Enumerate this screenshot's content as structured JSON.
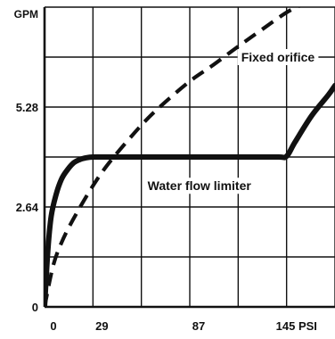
{
  "colors": {
    "background": "#ffffff",
    "ink": "#111111",
    "grid": "#111111"
  },
  "chart_data": {
    "type": "line",
    "title": "",
    "xlabel": "",
    "ylabel": "",
    "x_unit": "PSI",
    "y_unit": "GPM",
    "xlim": [
      0,
      174
    ],
    "ylim": [
      0,
      7.92
    ],
    "x_ticks": [
      0,
      29,
      87,
      145
    ],
    "x_tick_labels": [
      "0",
      "29",
      "87",
      "145 PSI"
    ],
    "y_ticks": [
      0,
      2.64,
      5.28,
      7.92
    ],
    "y_tick_labels": [
      "0",
      "2.64",
      "5.28",
      "GPM"
    ],
    "x_gridlines": [
      0,
      29,
      58,
      87,
      116,
      145,
      174
    ],
    "y_gridlines": [
      0,
      1.32,
      2.64,
      3.96,
      5.28,
      6.6,
      7.92
    ],
    "grid": true,
    "legend": "none",
    "annotations": [
      {
        "text": "Fixed orifice",
        "series": "fixed-orifice"
      },
      {
        "text": "Water flow limiter",
        "series": "water-flow-limiter"
      }
    ],
    "series": [
      {
        "key": "water-flow-limiter",
        "style": "solid",
        "x": [
          0,
          2,
          4,
          7,
          10,
          13,
          17,
          21,
          25,
          29,
          40,
          60,
          80,
          100,
          120,
          140,
          145,
          150,
          160,
          170,
          174
        ],
        "y": [
          0,
          1.5,
          2.4,
          2.98,
          3.36,
          3.58,
          3.79,
          3.89,
          3.94,
          3.96,
          3.96,
          3.96,
          3.96,
          3.96,
          3.96,
          3.96,
          3.98,
          4.35,
          5.05,
          5.6,
          5.85
        ]
      },
      {
        "key": "fixed-orifice",
        "style": "dashed",
        "x": [
          0,
          5,
          10,
          17,
          29,
          40,
          58,
          70,
          87,
          100,
          116,
          130,
          145,
          155
        ],
        "y": [
          0,
          1.06,
          1.68,
          2.3,
          3.2,
          3.88,
          4.8,
          5.32,
          5.96,
          6.36,
          6.88,
          7.32,
          7.78,
          8.0
        ]
      }
    ]
  }
}
